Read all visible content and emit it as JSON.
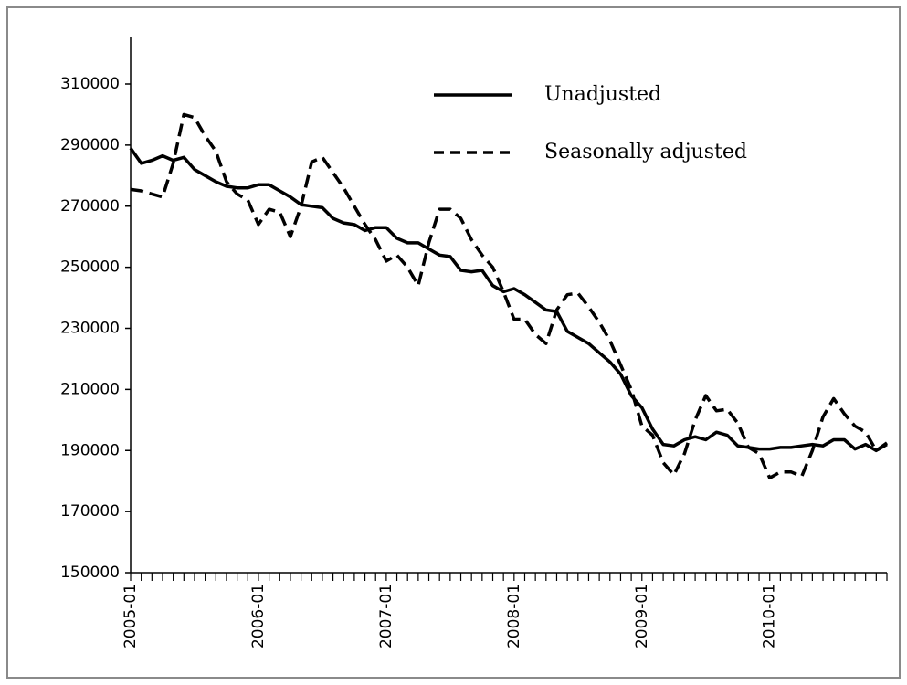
{
  "chart_data": {
    "type": "line",
    "categories": [
      "2005-01",
      null,
      null,
      null,
      null,
      null,
      null,
      null,
      null,
      null,
      null,
      null,
      "2006-01",
      null,
      null,
      null,
      null,
      null,
      null,
      null,
      null,
      null,
      null,
      null,
      "2007-01",
      null,
      null,
      null,
      null,
      null,
      null,
      null,
      null,
      null,
      null,
      null,
      "2008-01",
      null,
      null,
      null,
      null,
      null,
      null,
      null,
      null,
      null,
      null,
      null,
      "2009-01",
      null,
      null,
      null,
      null,
      null,
      null,
      null,
      null,
      null,
      null,
      null,
      "2010-01",
      null,
      null,
      null,
      null,
      null,
      null,
      null,
      null,
      null,
      null,
      null
    ],
    "series": [
      {
        "name": "Unadjusted",
        "color": "#000000",
        "line_style": "solid",
        "values": [
          289000,
          284000,
          285000,
          286500,
          285000,
          286000,
          282000,
          280000,
          278000,
          276500,
          276000,
          276000,
          277000,
          277000,
          275000,
          273000,
          270500,
          270000,
          269500,
          266000,
          264500,
          264000,
          262000,
          263000,
          263000,
          259500,
          258000,
          258000,
          256000,
          254000,
          253500,
          249000,
          248500,
          249000,
          244000,
          242000,
          243000,
          241000,
          238500,
          236000,
          235500,
          229000,
          227000,
          225000,
          222000,
          219000,
          215000,
          208000,
          204000,
          197000,
          192000,
          191500,
          193500,
          194500,
          193500,
          196000,
          195000,
          191500,
          191000,
          190500,
          190500,
          191000,
          191000,
          191500,
          192000,
          191500,
          193500,
          193500,
          190500,
          192000,
          190000,
          192500
        ]
      },
      {
        "name": "Seasonally adjusted",
        "color": "#000000",
        "line_style": "dashed",
        "values": [
          275500,
          275000,
          274000,
          273000,
          284000,
          300000,
          299000,
          293000,
          288000,
          278000,
          274000,
          272000,
          264000,
          269000,
          268000,
          260000,
          270000,
          284500,
          286000,
          281000,
          276000,
          270000,
          264000,
          259000,
          252000,
          254000,
          250000,
          244000,
          258000,
          269000,
          269000,
          266000,
          259000,
          254000,
          250000,
          242000,
          233000,
          233000,
          228000,
          225000,
          236000,
          241000,
          241500,
          237000,
          232000,
          226000,
          218000,
          210000,
          198000,
          195000,
          186000,
          182000,
          189000,
          200000,
          208000,
          203000,
          203500,
          199000,
          191000,
          189000,
          181000,
          183000,
          183000,
          181500,
          190000,
          201000,
          207000,
          202000,
          198000,
          196000,
          190000,
          192000
        ]
      }
    ],
    "ylim": [
      150000,
      310000
    ],
    "yticks": [
      150000,
      170000,
      190000,
      210000,
      230000,
      250000,
      270000,
      290000,
      310000
    ],
    "grid": false,
    "legend": "top-right"
  }
}
